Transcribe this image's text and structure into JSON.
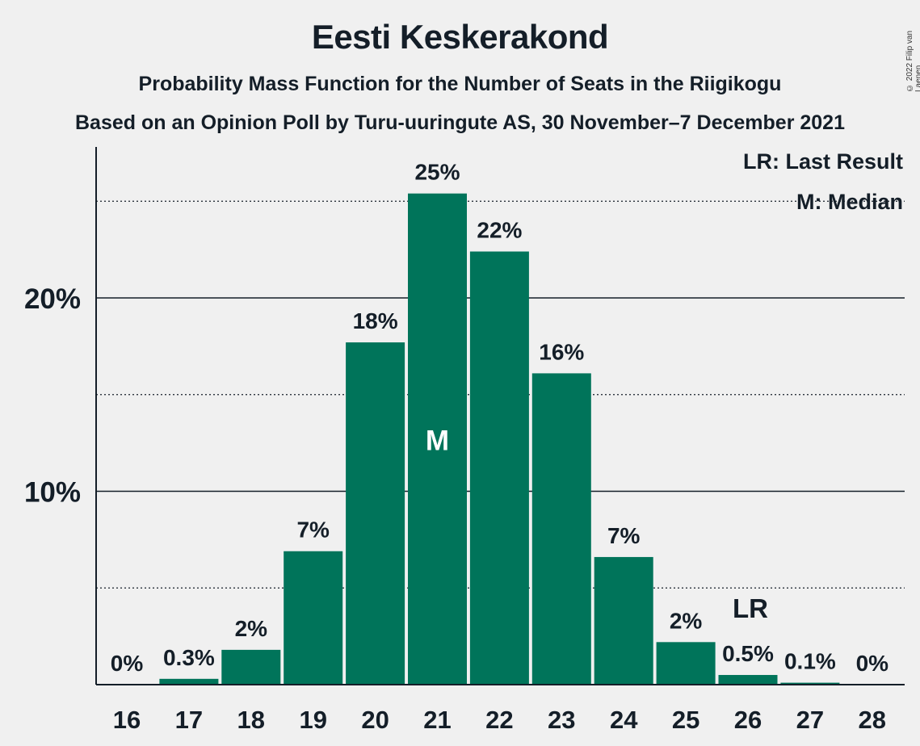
{
  "title": "Eesti Keskerakond",
  "subtitle1": "Probability Mass Function for the Number of Seats in the Riigikogu",
  "subtitle2": "Based on an Opinion Poll by Turu-uuringute AS, 30 November–7 December 2021",
  "copyright": "© 2022 Filip van Laenen",
  "legend": {
    "last_result": "LR: Last Result",
    "median": "M: Median"
  },
  "colors": {
    "bar": "#00745a",
    "background": "#f0f0f0",
    "text": "#141e28"
  },
  "chart_data": {
    "type": "bar",
    "categories": [
      "16",
      "17",
      "18",
      "19",
      "20",
      "21",
      "22",
      "23",
      "24",
      "25",
      "26",
      "27",
      "28"
    ],
    "values": [
      0,
      0.3,
      1.8,
      6.9,
      17.7,
      25.4,
      22.4,
      16.1,
      6.6,
      2.2,
      0.5,
      0.1,
      0
    ],
    "data_labels": [
      "0%",
      "0.3%",
      "2%",
      "7%",
      "18%",
      "25%",
      "22%",
      "16%",
      "7%",
      "2%",
      "0.5%",
      "0.1%",
      "0%"
    ],
    "ylim": [
      0,
      27.8
    ],
    "yticks": [
      {
        "value": 10,
        "label": "10%",
        "style": "solid"
      },
      {
        "value": 20,
        "label": "20%",
        "style": "solid"
      }
    ],
    "dotted_gridlines": [
      5,
      15,
      25
    ],
    "median_category": "21",
    "median_label": "M",
    "last_result_category": "26",
    "last_result_label": "LR"
  }
}
